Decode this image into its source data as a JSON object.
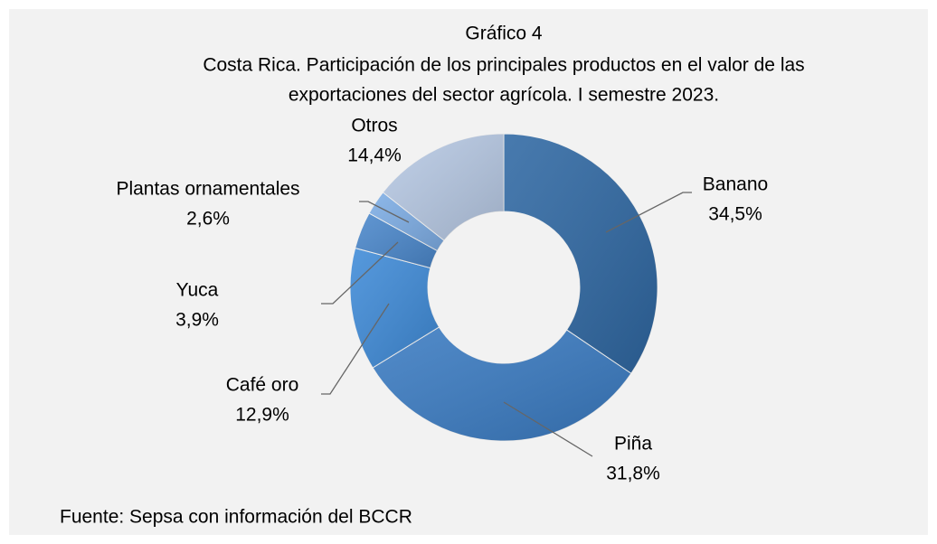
{
  "chart_data": {
    "type": "donut",
    "title": "Gráfico 4",
    "subtitle": [
      "Costa Rica.  Participación de los principales productos en el valor de las",
      "exportaciones del sector agrícola. I semestre 2023."
    ],
    "categories": [
      "Banano",
      "Piña",
      "Café oro",
      "Yuca",
      "Plantas ornamentales",
      "Otros"
    ],
    "values": [
      34.5,
      31.8,
      12.9,
      3.9,
      2.6,
      14.4
    ],
    "value_labels": [
      "34,5%",
      "31,8%",
      "12,9%",
      "3,9%",
      "2,6%",
      "14,4%"
    ],
    "colors": [
      "#2f68a3",
      "#3a7bc2",
      "#3f8bd8",
      "#4b88cc",
      "#7eaee6",
      "#b7c9e4"
    ],
    "source": "Fuente: Sepsa con información del BCCR"
  }
}
